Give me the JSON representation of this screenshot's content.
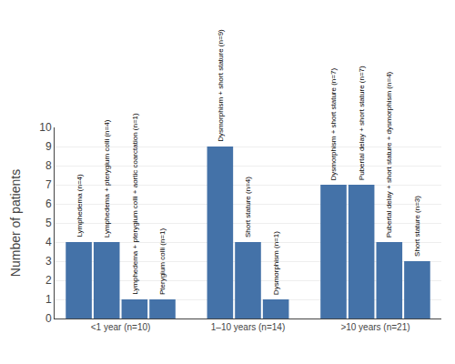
{
  "chart_data": {
    "type": "bar",
    "ylabel": "Number of patients",
    "color": "#4472a8",
    "ylim": [
      0,
      10
    ],
    "yticks": [
      0,
      1,
      2,
      3,
      4,
      5,
      6,
      7,
      8,
      9,
      10
    ],
    "grid": true,
    "groups": [
      {
        "category": "<1 year (n=10)",
        "values": [
          4,
          4,
          1,
          1
        ],
        "annotations": [
          "Lymphedema (n=4)",
          "Lymphedema + pterygium colli (n=4)",
          "Lymphedema + pterygium colli + aortic coarctation (n=1)",
          "Pterygium colli (n=1)"
        ]
      },
      {
        "category": "1–10 years (n=14)",
        "values": [
          9,
          4,
          1
        ],
        "annotations": [
          "Dysmorphism + short stature (n=9)",
          "Short stature (n=4)",
          "Dysmorphism (n=1)"
        ]
      },
      {
        "category": ">10 years (n=21)",
        "values": [
          7,
          7,
          4,
          3
        ],
        "annotations": [
          "Dysmorphism + short stature (n=7)",
          "Pubertal delay + short stature (n=7)",
          "Pubertal delay + short stature + dysmorphism (n=4)",
          "Short stature (n=3)"
        ]
      }
    ]
  }
}
